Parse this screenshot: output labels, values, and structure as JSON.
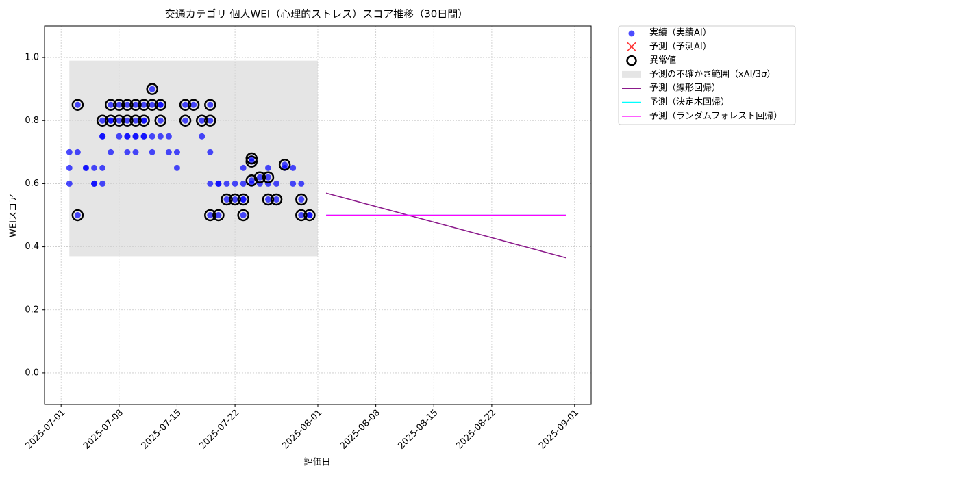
{
  "chart_data": {
    "type": "scatter",
    "title": "交通カテゴリ 個人WEI（心理的ストレス）スコア推移（30日間）",
    "x_label": "評価日",
    "y_label": "WEIスコア",
    "xlim": [
      "2025-06-29",
      "2025-09-03"
    ],
    "xticks": [
      "2025-07-01",
      "2025-07-08",
      "2025-07-15",
      "2025-07-22",
      "2025-08-01",
      "2025-08-08",
      "2025-08-15",
      "2025-08-22",
      "2025-09-01"
    ],
    "ylim": [
      -0.1,
      1.1
    ],
    "yticks": [
      {
        "value": 0,
        "label": "0.0"
      },
      0.2,
      0.4,
      0.6,
      0.8,
      {
        "value": 1,
        "label": "1.0"
      }
    ],
    "grid": true,
    "legend": "outside upper right",
    "series": [
      {
        "name": "実績（実績AI）",
        "kind": "scatter",
        "marker": "dot",
        "color": "#0000ff",
        "x": [
          "2025-07-02",
          "2025-07-02",
          "2025-07-02",
          "2025-07-03",
          "2025-07-03",
          "2025-07-03",
          "2025-07-04",
          "2025-07-04",
          "2025-07-05",
          "2025-07-05",
          "2025-07-05",
          "2025-07-06",
          "2025-07-06",
          "2025-07-06",
          "2025-07-06",
          "2025-07-06",
          "2025-07-07",
          "2025-07-07",
          "2025-07-07",
          "2025-07-07",
          "2025-07-08",
          "2025-07-08",
          "2025-07-08",
          "2025-07-09",
          "2025-07-09",
          "2025-07-09",
          "2025-07-09",
          "2025-07-09",
          "2025-07-10",
          "2025-07-10",
          "2025-07-10",
          "2025-07-10",
          "2025-07-10",
          "2025-07-11",
          "2025-07-11",
          "2025-07-11",
          "2025-07-11",
          "2025-07-11",
          "2025-07-12",
          "2025-07-12",
          "2025-07-12",
          "2025-07-12",
          "2025-07-13",
          "2025-07-13",
          "2025-07-13",
          "2025-07-13",
          "2025-07-14",
          "2025-07-14",
          "2025-07-15",
          "2025-07-15",
          "2025-07-16",
          "2025-07-16",
          "2025-07-17",
          "2025-07-18",
          "2025-07-18",
          "2025-07-19",
          "2025-07-19",
          "2025-07-19",
          "2025-07-19",
          "2025-07-19",
          "2025-07-20",
          "2025-07-20",
          "2025-07-20",
          "2025-07-21",
          "2025-07-21",
          "2025-07-22",
          "2025-07-22",
          "2025-07-23",
          "2025-07-23",
          "2025-07-23",
          "2025-07-23",
          "2025-07-23",
          "2025-07-24",
          "2025-07-24",
          "2025-07-24",
          "2025-07-24",
          "2025-07-25",
          "2025-07-25",
          "2025-07-26",
          "2025-07-26",
          "2025-07-26",
          "2025-07-26",
          "2025-07-27",
          "2025-07-27",
          "2025-07-28",
          "2025-07-28",
          "2025-07-29",
          "2025-07-29",
          "2025-07-30",
          "2025-07-30",
          "2025-07-30",
          "2025-07-31",
          "2025-07-31"
        ],
        "values": [
          0.7,
          0.65,
          0.6,
          0.85,
          0.5,
          0.7,
          0.65,
          0.65,
          0.6,
          0.65,
          0.6,
          0.75,
          0.65,
          0.6,
          0.8,
          0.75,
          0.85,
          0.8,
          0.8,
          0.7,
          0.75,
          0.85,
          0.8,
          0.75,
          0.7,
          0.8,
          0.85,
          0.75,
          0.7,
          0.8,
          0.75,
          0.75,
          0.85,
          0.8,
          0.75,
          0.85,
          0.8,
          0.75,
          0.9,
          0.7,
          0.85,
          0.75,
          0.85,
          0.8,
          0.75,
          0.85,
          0.7,
          0.75,
          0.7,
          0.65,
          0.85,
          0.8,
          0.85,
          0.8,
          0.75,
          0.85,
          0.8,
          0.7,
          0.5,
          0.6,
          0.6,
          0.5,
          0.6,
          0.55,
          0.6,
          0.55,
          0.6,
          0.55,
          0.65,
          0.6,
          0.55,
          0.5,
          0.68,
          0.67,
          0.6,
          0.61,
          0.62,
          0.6,
          0.62,
          0.55,
          0.6,
          0.65,
          0.55,
          0.6,
          0.66,
          0.65,
          0.6,
          0.65,
          0.55,
          0.5,
          0.6,
          0.5,
          0.5
        ]
      },
      {
        "name": "予測（予測AI）",
        "kind": "scatter",
        "marker": "cross",
        "color": "#ff0000",
        "x": [],
        "values": []
      },
      {
        "name": "異常値",
        "kind": "scatter",
        "marker": "ring",
        "color": "#000000",
        "x": [
          "2025-07-03",
          "2025-07-03",
          "2025-07-06",
          "2025-07-07",
          "2025-07-07",
          "2025-07-08",
          "2025-07-08",
          "2025-07-09",
          "2025-07-09",
          "2025-07-10",
          "2025-07-10",
          "2025-07-11",
          "2025-07-11",
          "2025-07-12",
          "2025-07-12",
          "2025-07-13",
          "2025-07-13",
          "2025-07-16",
          "2025-07-16",
          "2025-07-17",
          "2025-07-18",
          "2025-07-19",
          "2025-07-19",
          "2025-07-19",
          "2025-07-20",
          "2025-07-21",
          "2025-07-22",
          "2025-07-23",
          "2025-07-23",
          "2025-07-24",
          "2025-07-24",
          "2025-07-24",
          "2025-07-25",
          "2025-07-26",
          "2025-07-26",
          "2025-07-27",
          "2025-07-28",
          "2025-07-30",
          "2025-07-30",
          "2025-07-31"
        ],
        "values": [
          0.85,
          0.5,
          0.8,
          0.85,
          0.8,
          0.85,
          0.8,
          0.8,
          0.85,
          0.8,
          0.85,
          0.85,
          0.8,
          0.9,
          0.85,
          0.85,
          0.8,
          0.85,
          0.8,
          0.85,
          0.8,
          0.85,
          0.8,
          0.5,
          0.5,
          0.55,
          0.55,
          0.55,
          0.5,
          0.68,
          0.67,
          0.61,
          0.62,
          0.62,
          0.55,
          0.55,
          0.66,
          0.55,
          0.5,
          0.5
        ]
      },
      {
        "name": "予測の不確かさ範囲（xAI/3σ）",
        "kind": "band",
        "color": "#d3d3d3",
        "x": [
          "2025-07-02",
          "2025-08-01"
        ],
        "lower": [
          0.37,
          0.37
        ],
        "upper": [
          0.99,
          0.99
        ]
      },
      {
        "name": "予測（線形回帰）",
        "kind": "line",
        "color": "#8b1a8b",
        "x": [
          "2025-08-02",
          "2025-08-31"
        ],
        "values": [
          0.57,
          0.365
        ]
      },
      {
        "name": "予測（決定木回帰）",
        "kind": "line",
        "color": "#00ffff",
        "x": [
          "2025-08-02",
          "2025-08-31"
        ],
        "values": [
          0.5,
          0.5
        ]
      },
      {
        "name": "予測（ランダムフォレスト回帰）",
        "kind": "line",
        "color": "#ff00ff",
        "x": [
          "2025-08-02",
          "2025-08-31"
        ],
        "values": [
          0.5,
          0.5
        ]
      }
    ]
  }
}
